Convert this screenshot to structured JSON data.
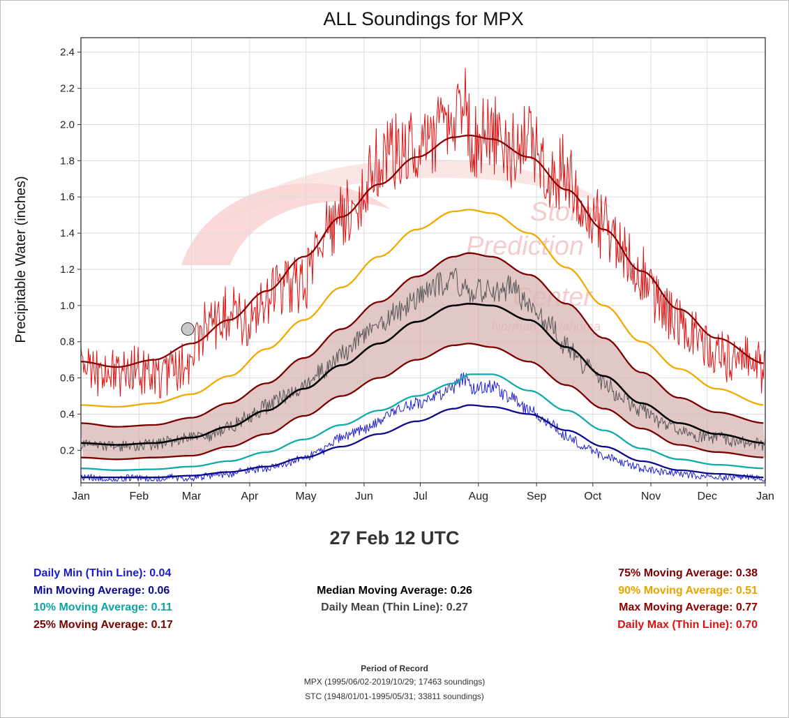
{
  "chart_data": {
    "type": "line",
    "title": "ALL Soundings for MPX",
    "ylabel": "Precipitable Water (inches)",
    "xlabel": "",
    "x_domain_days": [
      1,
      366
    ],
    "ylim": [
      0.02,
      2.48
    ],
    "y_ticks": [
      0.2,
      0.4,
      0.6,
      0.8,
      1.0,
      1.2,
      1.4,
      1.6,
      1.8,
      2.0,
      2.2,
      2.4
    ],
    "y_tick_labels": [
      "0.2",
      "0.4",
      "0.6",
      "0.8",
      "1.0",
      "1.2",
      "1.4",
      "1.6",
      "1.8",
      "2.0",
      "2.2",
      "2.4"
    ],
    "month_labels": [
      "Jan",
      "Feb",
      "Mar",
      "Apr",
      "May",
      "Jun",
      "Jul",
      "Aug",
      "Sep",
      "Oct",
      "Nov",
      "Dec",
      "Jan"
    ],
    "month_start_days": [
      1,
      32,
      60,
      91,
      121,
      152,
      182,
      213,
      244,
      274,
      305,
      335,
      366
    ],
    "grid": true,
    "watermark": {
      "line1": "Storm",
      "line2": "Prediction",
      "line3": "Center",
      "line4": "Norman, Oklahoma"
    },
    "colors": {
      "daily_min": "#2020d0",
      "min_avg": "#0b0b8c",
      "p10": "#11aaaa",
      "p25": "#7a0000",
      "p75": "#7a0000",
      "band_fill": "#d8b4b4",
      "median": "#000000",
      "daily_mean": "#555555",
      "p90": "#f2a900",
      "max_avg": "#8b0000",
      "daily_max": "#e01010"
    },
    "highlight_point": {
      "day": 58,
      "value": 0.87
    },
    "series": [
      {
        "key": "max_avg",
        "name": "Max Moving Average",
        "x": [
          1,
          20,
          40,
          60,
          80,
          100,
          120,
          140,
          160,
          180,
          200,
          208,
          220,
          240,
          260,
          280,
          300,
          320,
          340,
          366
        ],
        "values": [
          0.69,
          0.66,
          0.7,
          0.79,
          0.92,
          1.08,
          1.27,
          1.49,
          1.67,
          1.82,
          1.93,
          1.94,
          1.92,
          1.82,
          1.64,
          1.42,
          1.19,
          0.98,
          0.82,
          0.68
        ]
      },
      {
        "key": "p90",
        "name": "90% Moving Average",
        "x": [
          1,
          20,
          40,
          60,
          80,
          100,
          120,
          140,
          160,
          180,
          200,
          208,
          220,
          240,
          260,
          280,
          300,
          320,
          340,
          366
        ],
        "values": [
          0.45,
          0.44,
          0.46,
          0.51,
          0.61,
          0.76,
          0.92,
          1.1,
          1.27,
          1.42,
          1.52,
          1.53,
          1.51,
          1.4,
          1.21,
          1.0,
          0.8,
          0.65,
          0.54,
          0.45
        ]
      },
      {
        "key": "p75",
        "name": "75% Moving Average",
        "x": [
          1,
          20,
          40,
          60,
          80,
          100,
          120,
          140,
          160,
          180,
          200,
          208,
          220,
          240,
          260,
          280,
          300,
          320,
          340,
          366
        ],
        "values": [
          0.35,
          0.33,
          0.34,
          0.38,
          0.46,
          0.57,
          0.71,
          0.87,
          1.02,
          1.16,
          1.27,
          1.29,
          1.27,
          1.17,
          1.01,
          0.82,
          0.63,
          0.49,
          0.41,
          0.35
        ]
      },
      {
        "key": "median",
        "name": "Median Moving Average",
        "x": [
          1,
          20,
          40,
          60,
          80,
          100,
          120,
          140,
          160,
          180,
          200,
          208,
          220,
          240,
          260,
          280,
          300,
          320,
          340,
          366
        ],
        "values": [
          0.24,
          0.23,
          0.24,
          0.27,
          0.33,
          0.42,
          0.54,
          0.67,
          0.79,
          0.91,
          1.0,
          1.01,
          1.0,
          0.92,
          0.77,
          0.61,
          0.46,
          0.35,
          0.29,
          0.24
        ]
      },
      {
        "key": "p25",
        "name": "25% Moving Average",
        "x": [
          1,
          20,
          40,
          60,
          80,
          100,
          120,
          140,
          160,
          180,
          200,
          208,
          220,
          240,
          260,
          280,
          300,
          320,
          340,
          366
        ],
        "values": [
          0.16,
          0.15,
          0.16,
          0.17,
          0.22,
          0.29,
          0.39,
          0.5,
          0.6,
          0.7,
          0.78,
          0.79,
          0.77,
          0.69,
          0.56,
          0.43,
          0.32,
          0.23,
          0.19,
          0.16
        ]
      },
      {
        "key": "p10",
        "name": "10% Moving Average",
        "x": [
          1,
          20,
          40,
          60,
          80,
          100,
          120,
          140,
          160,
          180,
          200,
          208,
          220,
          240,
          260,
          280,
          300,
          320,
          340,
          366
        ],
        "values": [
          0.1,
          0.09,
          0.095,
          0.11,
          0.14,
          0.19,
          0.26,
          0.34,
          0.42,
          0.5,
          0.57,
          0.62,
          0.62,
          0.53,
          0.42,
          0.31,
          0.21,
          0.15,
          0.12,
          0.1
        ]
      },
      {
        "key": "min_avg",
        "name": "Min Moving Average",
        "x": [
          1,
          20,
          40,
          60,
          80,
          100,
          120,
          140,
          160,
          180,
          200,
          208,
          220,
          240,
          260,
          280,
          300,
          320,
          340,
          366
        ],
        "values": [
          0.05,
          0.05,
          0.05,
          0.06,
          0.08,
          0.11,
          0.16,
          0.22,
          0.29,
          0.36,
          0.43,
          0.45,
          0.44,
          0.4,
          0.31,
          0.22,
          0.14,
          0.09,
          0.07,
          0.05
        ]
      },
      {
        "key": "daily_max",
        "name": "Daily Max (Thin Line)",
        "x": [
          1,
          10,
          20,
          30,
          40,
          50,
          58,
          70,
          80,
          90,
          100,
          110,
          120,
          130,
          140,
          150,
          160,
          170,
          180,
          190,
          200,
          205,
          210,
          220,
          230,
          240,
          250,
          260,
          270,
          280,
          290,
          300,
          310,
          320,
          330,
          340,
          350,
          360,
          366
        ],
        "values": [
          0.7,
          0.63,
          0.62,
          0.64,
          0.6,
          0.62,
          0.7,
          0.9,
          0.96,
          0.88,
          1.05,
          1.1,
          1.12,
          1.42,
          1.5,
          1.58,
          1.8,
          1.86,
          1.88,
          1.95,
          1.98,
          2.15,
          1.9,
          1.95,
          1.85,
          1.9,
          1.72,
          1.75,
          1.55,
          1.42,
          1.3,
          1.18,
          1.0,
          0.9,
          0.82,
          0.75,
          0.68,
          0.7,
          0.62
        ]
      },
      {
        "key": "daily_mean",
        "name": "Daily Mean (Thin Line)",
        "x": [
          1,
          10,
          20,
          30,
          40,
          50,
          58,
          70,
          80,
          90,
          100,
          110,
          120,
          130,
          140,
          150,
          160,
          170,
          180,
          190,
          200,
          205,
          210,
          220,
          230,
          240,
          250,
          260,
          270,
          280,
          290,
          300,
          310,
          320,
          330,
          340,
          350,
          360,
          366
        ],
        "values": [
          0.23,
          0.22,
          0.22,
          0.23,
          0.23,
          0.25,
          0.27,
          0.28,
          0.33,
          0.38,
          0.44,
          0.5,
          0.55,
          0.64,
          0.73,
          0.82,
          0.88,
          0.97,
          1.03,
          1.12,
          1.14,
          1.1,
          1.08,
          1.07,
          1.1,
          1.0,
          0.9,
          0.78,
          0.66,
          0.57,
          0.48,
          0.42,
          0.35,
          0.31,
          0.28,
          0.27,
          0.25,
          0.24,
          0.23
        ]
      },
      {
        "key": "daily_min",
        "name": "Daily Min (Thin Line)",
        "x": [
          1,
          10,
          20,
          30,
          40,
          50,
          58,
          70,
          80,
          90,
          100,
          110,
          120,
          130,
          140,
          150,
          160,
          170,
          180,
          190,
          200,
          205,
          210,
          220,
          230,
          240,
          250,
          260,
          270,
          280,
          290,
          300,
          310,
          320,
          330,
          340,
          350,
          360,
          366
        ],
        "values": [
          0.05,
          0.05,
          0.04,
          0.05,
          0.04,
          0.05,
          0.04,
          0.06,
          0.07,
          0.09,
          0.1,
          0.13,
          0.16,
          0.2,
          0.27,
          0.31,
          0.36,
          0.42,
          0.46,
          0.5,
          0.55,
          0.6,
          0.54,
          0.55,
          0.49,
          0.42,
          0.36,
          0.28,
          0.22,
          0.17,
          0.13,
          0.1,
          0.08,
          0.07,
          0.06,
          0.05,
          0.05,
          0.05,
          0.04
        ]
      }
    ]
  },
  "subtitle": "27 Feb 12 UTC",
  "stats": {
    "left": [
      {
        "label": "Daily Min (Thin Line): 0.04",
        "color": "#1a1ad0"
      },
      {
        "label": "Min Moving Average: 0.06",
        "color": "#0b0b8c"
      },
      {
        "label": "10% Moving Average: 0.11",
        "color": "#10a3a3"
      },
      {
        "label": "25% Moving Average: 0.17",
        "color": "#7a0000"
      }
    ],
    "center": [
      {
        "label": "Median Moving Average: 0.26",
        "color": "#000000"
      },
      {
        "label": "Daily Mean (Thin Line): 0.27",
        "color": "#444444"
      }
    ],
    "right": [
      {
        "label": "75% Moving Average: 0.38",
        "color": "#7a0000"
      },
      {
        "label": "90% Moving Average: 0.51",
        "color": "#eaa400"
      },
      {
        "label": "Max Moving Average: 0.77",
        "color": "#8b0000"
      },
      {
        "label": "Daily Max (Thin Line): 0.70",
        "color": "#e01010"
      }
    ]
  },
  "period": {
    "title": "Period of Record",
    "line1": "MPX (1995/06/02-2019/10/29; 17463 soundings)",
    "line2": "STC (1948/01/01-1995/05/31; 33811 soundings)"
  }
}
